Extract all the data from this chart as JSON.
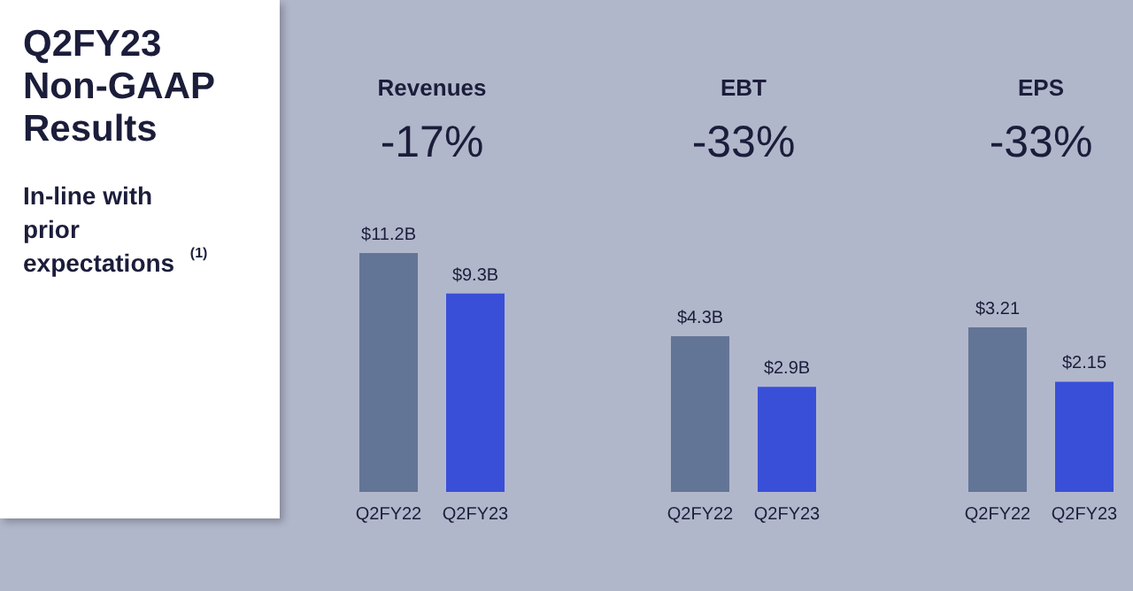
{
  "chart_data": [
    {
      "type": "other",
      "title": "Q2FY23 Non-GAAP Results",
      "subtitle": "In-line with prior expectations$^{(1)}$"
    },
    {
      "type": "bar",
      "title": "Revenues",
      "subtitle": "-17%",
      "categories": [
        "Q2FY22",
        "Q2FY23"
      ],
      "values": [
        11.2,
        9.3
      ],
      "colors": [
        "#637596",
        "#3a4fd8"
      ],
      "value_labels": [
        "$11.2B",
        "$9.3B"
      ]
    },
    {
      "type": "bar",
      "title": "EBT",
      "subtitle": "-33%",
      "categories": [
        "Q2FY22",
        "Q2FY23"
      ],
      "values": [
        4.3,
        2.9
      ],
      "colors": [
        "#637596",
        "#3a4fd8"
      ],
      "value_labels": [
        "$4.3B",
        "$2.9B"
      ]
    },
    {
      "type": "bar",
      "title": "EPS",
      "subtitle": "-33%",
      "categories": [
        "Q2FY22",
        "Q2FY23"
      ],
      "values": [
        3.21,
        2.15
      ],
      "colors": [
        "#637596",
        "#3a4fd8"
      ],
      "value_labels": [
        "$3.21",
        "$2.15"
      ]
    }
  ]
}
